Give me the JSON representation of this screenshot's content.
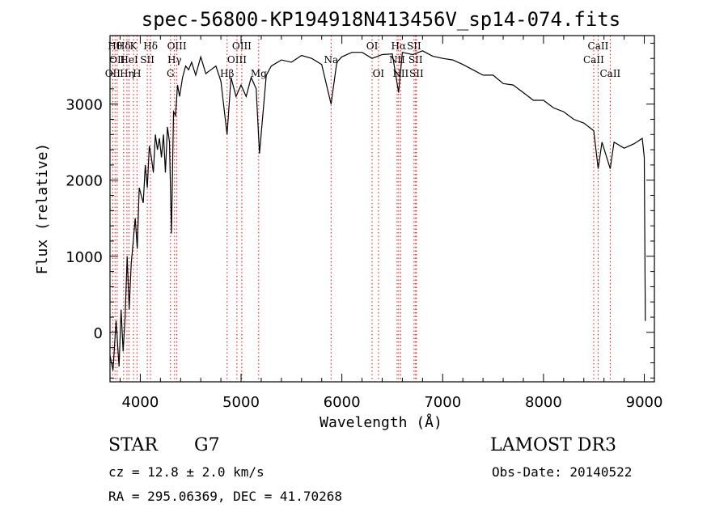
{
  "title": "spec-56800-KP194918N413456V_sp14-074.fits",
  "chart_data": {
    "type": "line",
    "title": "spec-56800-KP194918N413456V_sp14-074.fits",
    "xlabel": "Wavelength (Å)",
    "ylabel": "Flux (relative)",
    "xlim": [
      3700,
      9100
    ],
    "ylim": [
      -650,
      3900
    ],
    "xticks": [
      4000,
      5000,
      6000,
      7000,
      8000,
      9000
    ],
    "yticks": [
      0,
      1000,
      2000,
      3000
    ],
    "grid": false,
    "series": [
      {
        "x": [
          3700,
          3730,
          3760,
          3790,
          3810,
          3830,
          3850,
          3870,
          3890,
          3910,
          3930,
          3950,
          3970,
          3990,
          4010,
          4030,
          4050,
          4070,
          4090,
          4110,
          4130,
          4150,
          4170,
          4190,
          4210,
          4230,
          4250,
          4270,
          4290,
          4310,
          4330,
          4350,
          4370,
          4390,
          4420,
          4450,
          4480,
          4510,
          4550,
          4600,
          4650,
          4700,
          4750,
          4800,
          4861,
          4900,
          4950,
          5000,
          5050,
          5100,
          5150,
          5183,
          5250,
          5300,
          5400,
          5500,
          5600,
          5700,
          5800,
          5893,
          5950,
          6000,
          6100,
          6200,
          6300,
          6400,
          6500,
          6563,
          6600,
          6700,
          6800,
          6900,
          7000,
          7100,
          7200,
          7300,
          7400,
          7500,
          7600,
          7700,
          7800,
          7900,
          8000,
          8100,
          8200,
          8300,
          8400,
          8498,
          8542,
          8580,
          8662,
          8700,
          8800,
          8900,
          8980,
          9000,
          9010
        ],
        "values": [
          -300,
          -500,
          150,
          -450,
          300,
          -250,
          200,
          1000,
          300,
          900,
          1200,
          1500,
          1100,
          1900,
          1800,
          1700,
          2200,
          1900,
          2450,
          2300,
          2100,
          2600,
          2400,
          2550,
          2300,
          2600,
          2100,
          2700,
          2500,
          1300,
          2900,
          2850,
          3250,
          3100,
          3350,
          3500,
          3450,
          3550,
          3380,
          3620,
          3400,
          3450,
          3500,
          3300,
          2600,
          3350,
          3100,
          3250,
          3100,
          3350,
          3200,
          2350,
          3380,
          3500,
          3580,
          3550,
          3640,
          3600,
          3520,
          3000,
          3550,
          3620,
          3680,
          3680,
          3600,
          3650,
          3660,
          3150,
          3680,
          3650,
          3700,
          3630,
          3600,
          3580,
          3520,
          3450,
          3380,
          3380,
          3270,
          3250,
          3150,
          3050,
          3050,
          2950,
          2900,
          2800,
          2750,
          2650,
          2150,
          2500,
          2150,
          2500,
          2420,
          2480,
          2550,
          2300,
          150
        ]
      }
    ],
    "line_markers": [
      {
        "x": 3727,
        "row": 3,
        "label": "OII"
      },
      {
        "x": 3750,
        "row": 1,
        "label": "Hθ"
      },
      {
        "x": 3771,
        "row": 2,
        "label": "OII"
      },
      {
        "x": 3835,
        "row": 1,
        "label": "Hδ"
      },
      {
        "x": 3868,
        "row": 3,
        "label": "Hη"
      },
      {
        "x": 3889,
        "row": 2,
        "label": "HeI"
      },
      {
        "x": 3933,
        "row": 1,
        "label": "K"
      },
      {
        "x": 3968,
        "row": 3,
        "label": "H"
      },
      {
        "x": 4070,
        "row": 2,
        "label": "SII"
      },
      {
        "x": 4102,
        "row": 1,
        "label": "Hδ"
      },
      {
        "x": 4300,
        "row": 3,
        "label": "G"
      },
      {
        "x": 4340,
        "row": 2,
        "label": "Hγ"
      },
      {
        "x": 4363,
        "row": 1,
        "label": "OIII"
      },
      {
        "x": 4861,
        "row": 3,
        "label": "Hβ"
      },
      {
        "x": 4959,
        "row": 2,
        "label": "OIII"
      },
      {
        "x": 5007,
        "row": 1,
        "label": "OIII"
      },
      {
        "x": 5175,
        "row": 3,
        "label": "Mg"
      },
      {
        "x": 5893,
        "row": 2,
        "label": "Na"
      },
      {
        "x": 6300,
        "row": 1,
        "label": "OI"
      },
      {
        "x": 6363,
        "row": 3,
        "label": "OI"
      },
      {
        "x": 6548,
        "row": 2,
        "label": "NII"
      },
      {
        "x": 6563,
        "row": 1,
        "label": "Hα"
      },
      {
        "x": 6583,
        "row": 3,
        "label": "NII"
      },
      {
        "x": 6716,
        "row": 1,
        "label": "SII"
      },
      {
        "x": 6731,
        "row": 2,
        "label": "SII"
      },
      {
        "x": 6740,
        "row": 3,
        "label": "SII"
      },
      {
        "x": 8498,
        "row": 2,
        "label": "CaII"
      },
      {
        "x": 8542,
        "row": 1,
        "label": "CaII"
      },
      {
        "x": 8662,
        "row": 3,
        "label": "CaII"
      }
    ]
  },
  "info": {
    "star_type": "STAR",
    "subclass": "G7",
    "survey": "LAMOST DR3",
    "cz": "cz = 12.8 ± 2.0 km/s",
    "obs_date": "Obs-Date: 20140522",
    "coords": "RA = 295.06369, DEC =  41.70268"
  },
  "colors": {
    "spectrum": "#000000",
    "marker_line": "#ff0000",
    "text": "#000000",
    "background": "#ffffff"
  }
}
